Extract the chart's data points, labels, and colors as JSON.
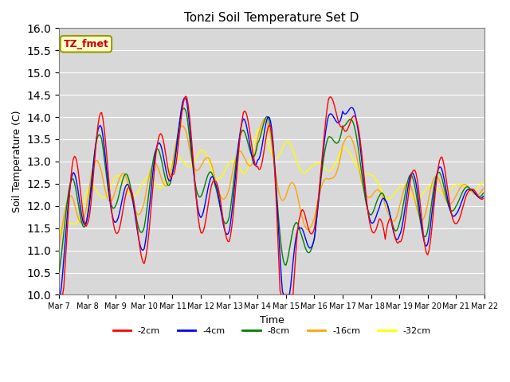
{
  "title": "Tonzi Soil Temperature Set D",
  "xlabel": "Time",
  "ylabel": "Soil Temperature (C)",
  "ylim": [
    10.0,
    16.0
  ],
  "yticks": [
    10.0,
    10.5,
    11.0,
    11.5,
    12.0,
    12.5,
    13.0,
    13.5,
    14.0,
    14.5,
    15.0,
    15.5,
    16.0
  ],
  "xtick_labels": [
    "Mar 7",
    "Mar 8",
    "Mar 9",
    "Mar 10",
    "Mar 11",
    "Mar 12",
    "Mar 13",
    "Mar 14",
    "Mar 15",
    "Mar 16",
    "Mar 17",
    "Mar 18",
    "Mar 19",
    "Mar 20",
    "Mar 21",
    "Mar 22"
  ],
  "series_colors": [
    "red",
    "blue",
    "green",
    "orange",
    "yellow"
  ],
  "series_labels": [
    "-2cm",
    "-4cm",
    "-8cm",
    "-16cm",
    "-32cm"
  ],
  "legend_label": "TZ_fmet",
  "legend_bg": "#ffffcc",
  "legend_edge": "#999900",
  "legend_text_color": "#cc0000",
  "bg_color": "#d8d8d8",
  "grid_color": "white",
  "figsize": [
    6.4,
    4.8
  ],
  "dpi": 100
}
